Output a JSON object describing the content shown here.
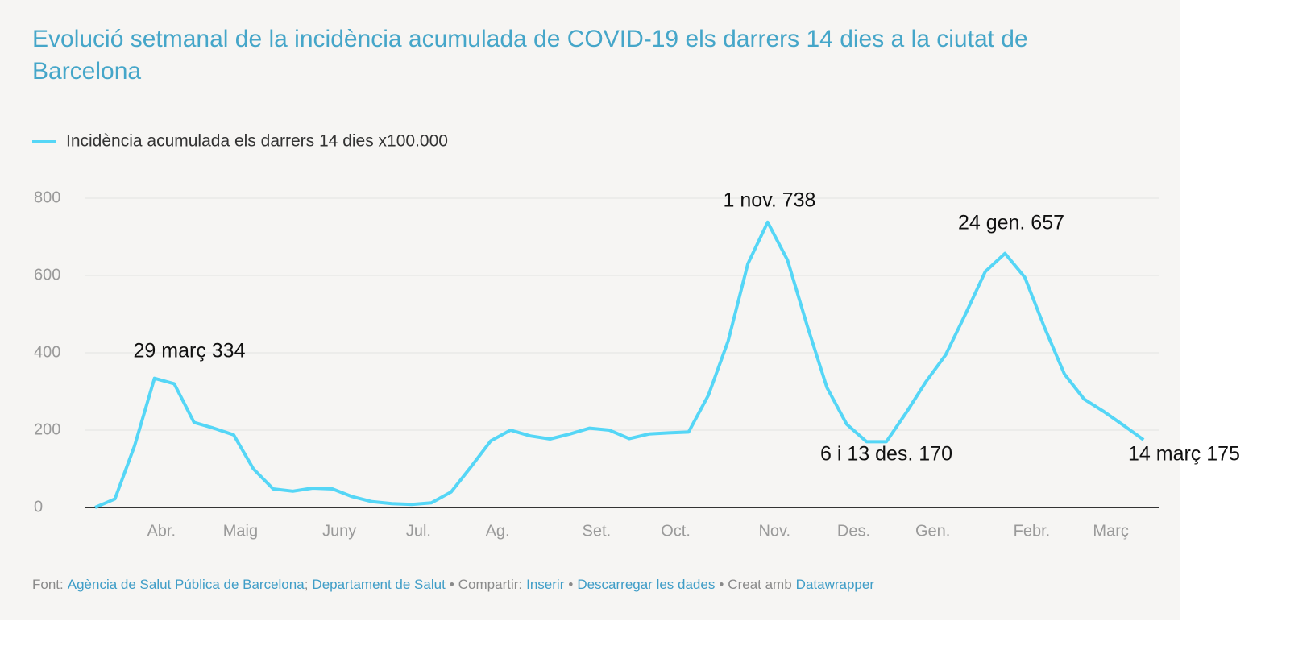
{
  "chart_data": {
    "type": "line",
    "title": "Evolució setmanal de la incidència acumulada de COVID-19 els darrers 14 dies a la ciutat de Barcelona",
    "categories": [
      null,
      null,
      null,
      "Abr.",
      null,
      null,
      null,
      "Maig",
      null,
      null,
      null,
      null,
      "Juny",
      null,
      null,
      null,
      "Jul.",
      null,
      null,
      null,
      "Ag.",
      null,
      null,
      null,
      null,
      "Set.",
      null,
      null,
      null,
      "Oct.",
      null,
      null,
      null,
      null,
      "Nov.",
      null,
      null,
      null,
      "Des.",
      null,
      null,
      null,
      "Gen.",
      null,
      null,
      null,
      null,
      "Febr.",
      null,
      null,
      null,
      "Març",
      null,
      null
    ],
    "series": [
      {
        "name": "Incidència acumulada els darrers 14 dies x100.000",
        "color": "#55d6f6",
        "values": [
          0,
          22,
          160,
          334,
          320,
          220,
          205,
          188,
          100,
          48,
          42,
          50,
          48,
          28,
          15,
          10,
          8,
          12,
          40,
          105,
          172,
          200,
          185,
          177,
          190,
          205,
          200,
          178,
          190,
          193,
          195,
          290,
          430,
          630,
          738,
          640,
          470,
          310,
          215,
          170,
          170,
          245,
          325,
          395,
          500,
          610,
          657,
          595,
          465,
          345,
          280,
          248,
          212,
          175
        ]
      }
    ],
    "ylim": [
      0,
      800
    ],
    "yticks": [
      0,
      200,
      400,
      600,
      800
    ],
    "grid": true,
    "annotations": [
      "29 març 334",
      "1 nov. 738",
      "24 gen. 657",
      "6 i 13 des. 170",
      "14 març 175"
    ],
    "footer": {
      "source_label": "Font:",
      "sources": [
        "Agència de Salut Pública de Barcelona",
        "Departament de Salut"
      ],
      "separators": [
        ";",
        "•"
      ],
      "share_label": "Compartir:",
      "links": [
        "Inserir",
        "Descarregar les dades"
      ],
      "credit_label": "Creat amb",
      "credit": "Datawrapper"
    }
  }
}
